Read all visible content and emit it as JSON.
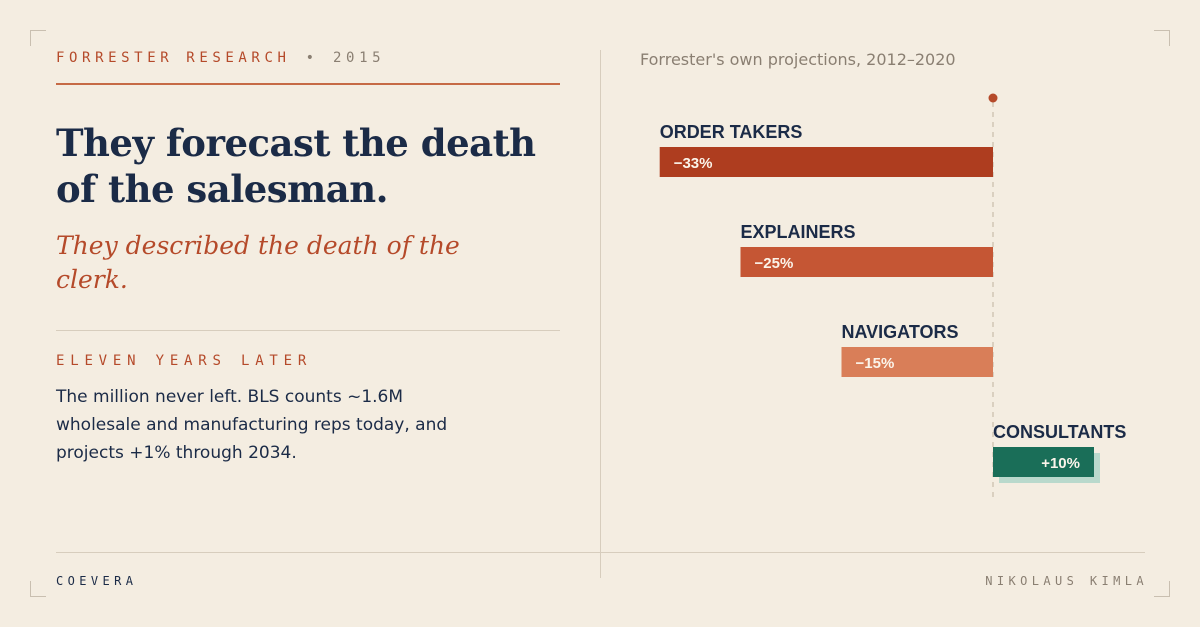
{
  "header": {
    "source": "FORRESTER RESEARCH",
    "separator": "•",
    "year": "2015"
  },
  "headline": "They forecast the death of the salesman.",
  "subhead": "They described the death of the clerk.",
  "section_label": "ELEVEN YEARS LATER",
  "body": "The million never left. BLS counts ~1.6M wholesale and manufacturing reps today, and projects +1% through 2034.",
  "chart_note": "Forrester's own projections, 2012–2020",
  "footer": {
    "brand": "COEVERA",
    "author": "NIKOLAUS KIMLA"
  },
  "colors": {
    "background": "#f4ede1",
    "navy": "#1b2b47",
    "accent": "#b54a2a",
    "muted": "#8a7f72",
    "positive": "#1a6e58",
    "positive_shadow": "#b9d9cc"
  },
  "chart_data": {
    "type": "bar",
    "orientation": "horizontal",
    "categories": [
      "ORDER TAKERS",
      "EXPLAINERS",
      "NAVIGATORS",
      "CONSULTANTS"
    ],
    "values": [
      -33,
      -25,
      -15,
      10
    ],
    "labels": [
      "−33%",
      "−25%",
      "−15%",
      "+10%"
    ],
    "colors": [
      "#ae3d1f",
      "#c55634",
      "#d97e58",
      "#1a6e58"
    ],
    "unit": "%",
    "xlim": [
      -33,
      10
    ]
  }
}
